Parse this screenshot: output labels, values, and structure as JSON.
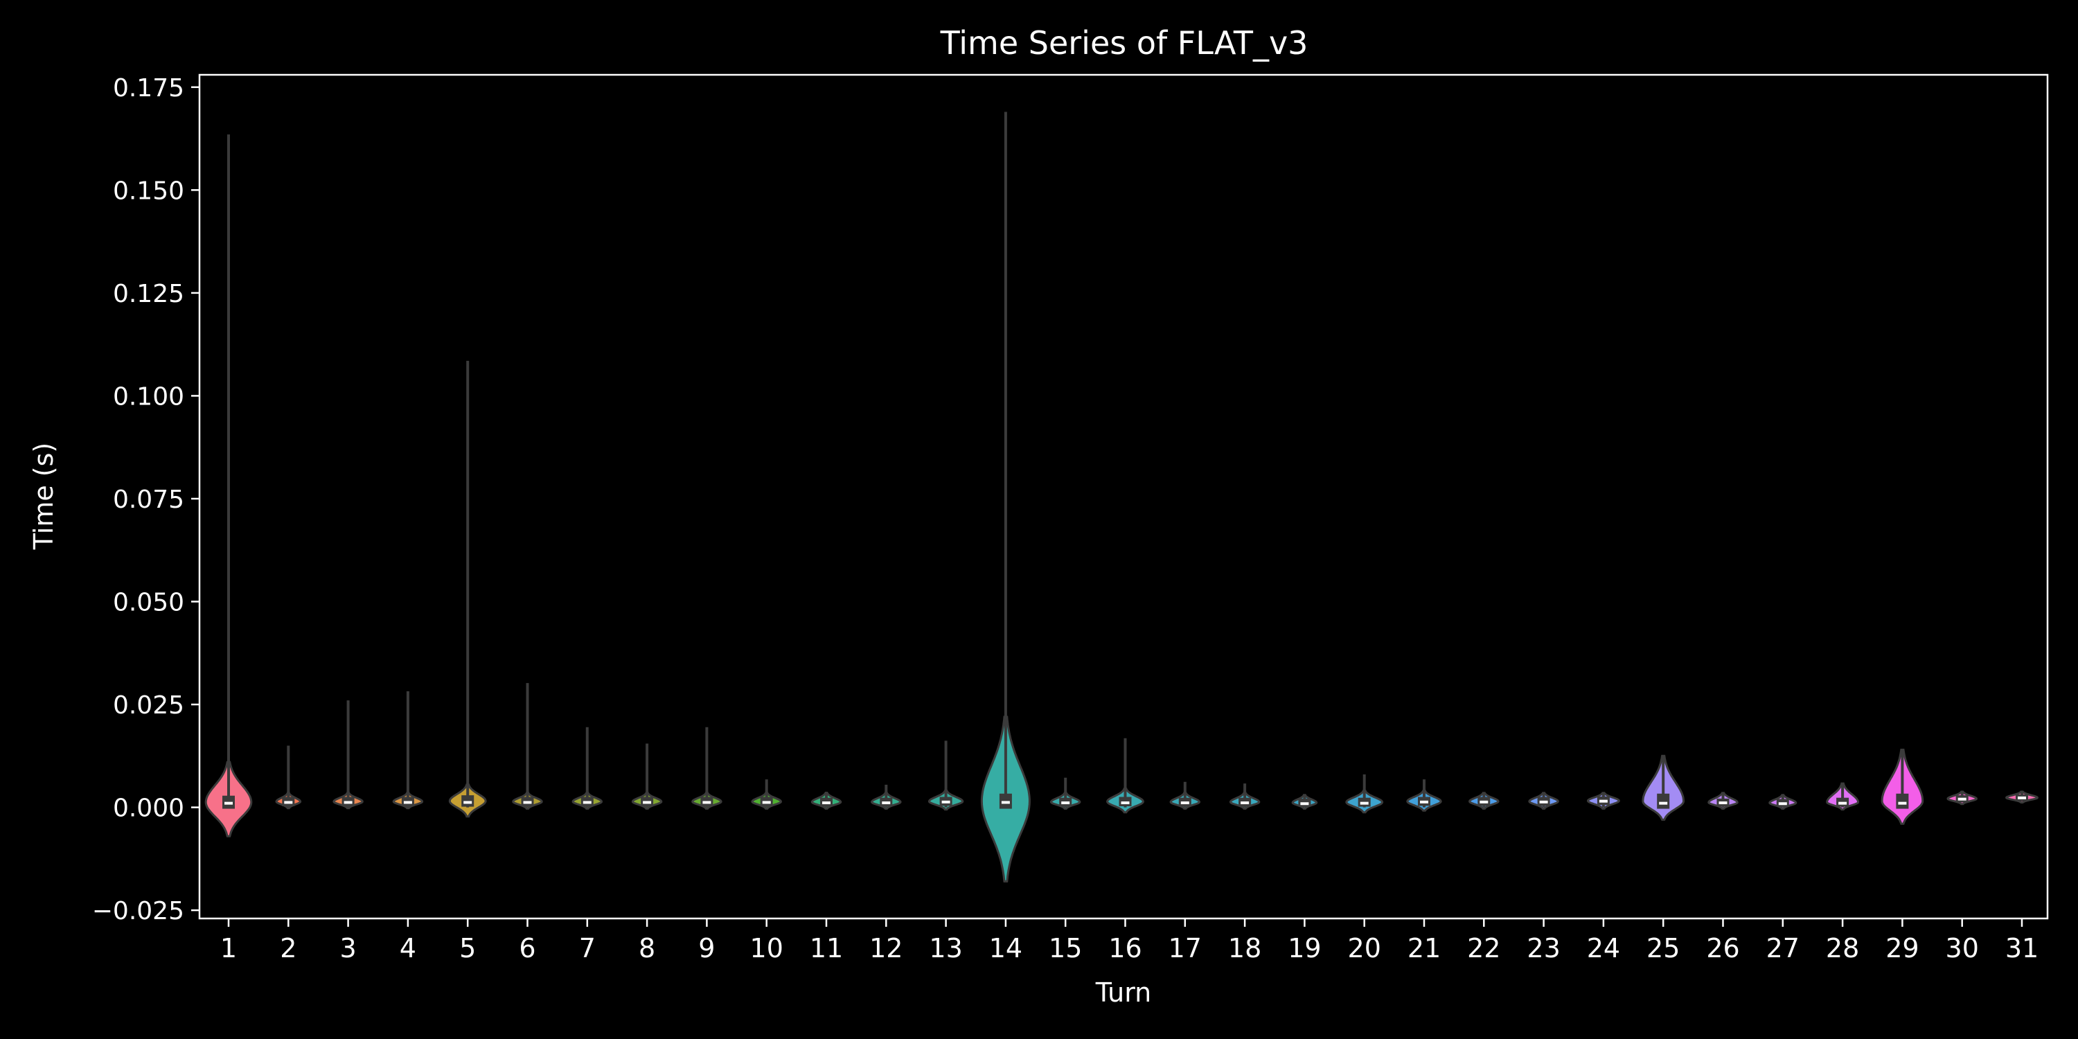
{
  "chart_data": {
    "type": "violin",
    "title": "Time Series of FLAT_v3",
    "xlabel": "Turn",
    "ylabel": "Time (s)",
    "ylim": [
      -0.027,
      0.178
    ],
    "yticks": [
      -0.025,
      0.0,
      0.025,
      0.05,
      0.075,
      0.1,
      0.125,
      0.15,
      0.175
    ],
    "ytick_labels": [
      "−0.025",
      "0.000",
      "0.025",
      "0.050",
      "0.075",
      "0.100",
      "0.125",
      "0.150",
      "0.175"
    ],
    "grid": false,
    "legend": "none",
    "categories": [
      "1",
      "2",
      "3",
      "4",
      "5",
      "6",
      "7",
      "8",
      "9",
      "10",
      "11",
      "12",
      "13",
      "14",
      "15",
      "16",
      "17",
      "18",
      "19",
      "20",
      "21",
      "22",
      "23",
      "24",
      "25",
      "26",
      "27",
      "28",
      "29",
      "30",
      "31"
    ],
    "colors": [
      "#f77189",
      "#f3754f",
      "#e7854f",
      "#d99644",
      "#c69f32",
      "#ae9d31",
      "#97a431",
      "#82a731",
      "#67ab31",
      "#50b131",
      "#33b07a",
      "#34ae91",
      "#35ac9d",
      "#36ada4",
      "#37abab",
      "#38aab1",
      "#39a9b7",
      "#3aa8bd",
      "#3ba5c4",
      "#3da3ce",
      "#41a0da",
      "#4d9de9",
      "#6e9af4",
      "#8e91f4",
      "#a38cf4",
      "#b986f4",
      "#cc7af4",
      "#e16ff4",
      "#f35ee8",
      "#f565cc",
      "#f66cb0"
    ],
    "stats": [
      {
        "min": 0.0,
        "q1": 0.0,
        "median": 0.001,
        "q3": 0.0025,
        "max": 0.1635,
        "low": -0.007,
        "high": 0.011,
        "width": 0.38
      },
      {
        "min": 0.0,
        "q1": 0.0006,
        "median": 0.0012,
        "q3": 0.0022,
        "max": 0.015,
        "low": -0.0002,
        "high": 0.0035,
        "width": 0.2
      },
      {
        "min": 0.0,
        "q1": 0.0006,
        "median": 0.0012,
        "q3": 0.0022,
        "max": 0.026,
        "low": -0.0002,
        "high": 0.0035,
        "width": 0.24
      },
      {
        "min": 0.0,
        "q1": 0.0006,
        "median": 0.0012,
        "q3": 0.0022,
        "max": 0.0282,
        "low": -0.0002,
        "high": 0.0035,
        "width": 0.24
      },
      {
        "min": 0.0,
        "q1": 0.0005,
        "median": 0.0012,
        "q3": 0.0026,
        "max": 0.1085,
        "low": -0.0022,
        "high": 0.0055,
        "width": 0.3
      },
      {
        "min": 0.0,
        "q1": 0.0006,
        "median": 0.0012,
        "q3": 0.0022,
        "max": 0.0302,
        "low": -0.0003,
        "high": 0.0035,
        "width": 0.24
      },
      {
        "min": 0.0,
        "q1": 0.0006,
        "median": 0.0012,
        "q3": 0.0022,
        "max": 0.0195,
        "low": -0.0003,
        "high": 0.0035,
        "width": 0.24
      },
      {
        "min": 0.0,
        "q1": 0.0006,
        "median": 0.0012,
        "q3": 0.0022,
        "max": 0.0155,
        "low": -0.0003,
        "high": 0.0035,
        "width": 0.24
      },
      {
        "min": 0.0,
        "q1": 0.0006,
        "median": 0.0012,
        "q3": 0.0022,
        "max": 0.0195,
        "low": -0.0003,
        "high": 0.0035,
        "width": 0.24
      },
      {
        "min": 0.0,
        "q1": 0.0006,
        "median": 0.0012,
        "q3": 0.0022,
        "max": 0.0068,
        "low": -0.0003,
        "high": 0.0035,
        "width": 0.24
      },
      {
        "min": 0.0,
        "q1": 0.0006,
        "median": 0.0011,
        "q3": 0.002,
        "max": 0.0038,
        "low": -0.0003,
        "high": 0.0035,
        "width": 0.24
      },
      {
        "min": 0.0,
        "q1": 0.0006,
        "median": 0.0011,
        "q3": 0.002,
        "max": 0.0055,
        "low": -0.0003,
        "high": 0.0035,
        "width": 0.24
      },
      {
        "min": 0.0,
        "q1": 0.0007,
        "median": 0.0013,
        "q3": 0.0022,
        "max": 0.0162,
        "low": -0.0005,
        "high": 0.004,
        "width": 0.28
      },
      {
        "min": 0.0,
        "q1": 0.0,
        "median": 0.0012,
        "q3": 0.003,
        "max": 0.169,
        "low": -0.018,
        "high": 0.022,
        "width": 0.4
      },
      {
        "min": 0.0,
        "q1": 0.0006,
        "median": 0.0011,
        "q3": 0.002,
        "max": 0.0072,
        "low": -0.0003,
        "high": 0.0035,
        "width": 0.24
      },
      {
        "min": 0.0,
        "q1": 0.0006,
        "median": 0.0011,
        "q3": 0.0022,
        "max": 0.0168,
        "low": -0.0012,
        "high": 0.0045,
        "width": 0.3
      },
      {
        "min": 0.0,
        "q1": 0.0006,
        "median": 0.0011,
        "q3": 0.002,
        "max": 0.0062,
        "low": -0.0003,
        "high": 0.0035,
        "width": 0.24
      },
      {
        "min": 0.0,
        "q1": 0.0006,
        "median": 0.0011,
        "q3": 0.002,
        "max": 0.0058,
        "low": -0.0003,
        "high": 0.0035,
        "width": 0.24
      },
      {
        "min": 0.0,
        "q1": 0.0005,
        "median": 0.0009,
        "q3": 0.0018,
        "max": 0.0025,
        "low": -0.0003,
        "high": 0.003,
        "width": 0.2
      },
      {
        "min": 0.0,
        "q1": 0.0005,
        "median": 0.001,
        "q3": 0.002,
        "max": 0.008,
        "low": -0.0012,
        "high": 0.004,
        "width": 0.3
      },
      {
        "min": 0.0,
        "q1": 0.0007,
        "median": 0.0013,
        "q3": 0.0022,
        "max": 0.0068,
        "low": -0.0008,
        "high": 0.004,
        "width": 0.28
      },
      {
        "min": 0.0,
        "q1": 0.0007,
        "median": 0.0013,
        "q3": 0.0022,
        "max": 0.003,
        "low": -0.0003,
        "high": 0.0035,
        "width": 0.24
      },
      {
        "min": 0.0,
        "q1": 0.0007,
        "median": 0.0013,
        "q3": 0.0022,
        "max": 0.003,
        "low": -0.0003,
        "high": 0.0035,
        "width": 0.24
      },
      {
        "min": 0.0,
        "q1": 0.0009,
        "median": 0.0015,
        "q3": 0.0023,
        "max": 0.003,
        "low": -0.0003,
        "high": 0.0035,
        "width": 0.26
      },
      {
        "min": 0.0,
        "q1": 0.0,
        "median": 0.001,
        "q3": 0.003,
        "max": 0.012,
        "low": -0.003,
        "high": 0.0125,
        "width": 0.34
      },
      {
        "min": 0.0,
        "q1": 0.0006,
        "median": 0.0011,
        "q3": 0.0018,
        "max": 0.0032,
        "low": -0.0003,
        "high": 0.0035,
        "width": 0.24
      },
      {
        "min": 0.0,
        "q1": 0.0005,
        "median": 0.0009,
        "q3": 0.0017,
        "max": 0.0028,
        "low": -0.0003,
        "high": 0.003,
        "width": 0.22
      },
      {
        "min": 0.0,
        "q1": 0.0005,
        "median": 0.001,
        "q3": 0.002,
        "max": 0.0055,
        "low": -0.0005,
        "high": 0.0058,
        "width": 0.26
      },
      {
        "min": 0.0,
        "q1": 0.0,
        "median": 0.001,
        "q3": 0.003,
        "max": 0.014,
        "low": -0.004,
        "high": 0.014,
        "width": 0.34
      },
      {
        "min": 0.0012,
        "q1": 0.0016,
        "median": 0.002,
        "q3": 0.0026,
        "max": 0.0035,
        "low": 0.0008,
        "high": 0.0038,
        "width": 0.24
      },
      {
        "min": 0.0015,
        "q1": 0.0019,
        "median": 0.0023,
        "q3": 0.0028,
        "max": 0.0036,
        "low": 0.0012,
        "high": 0.0038,
        "width": 0.26
      }
    ]
  }
}
